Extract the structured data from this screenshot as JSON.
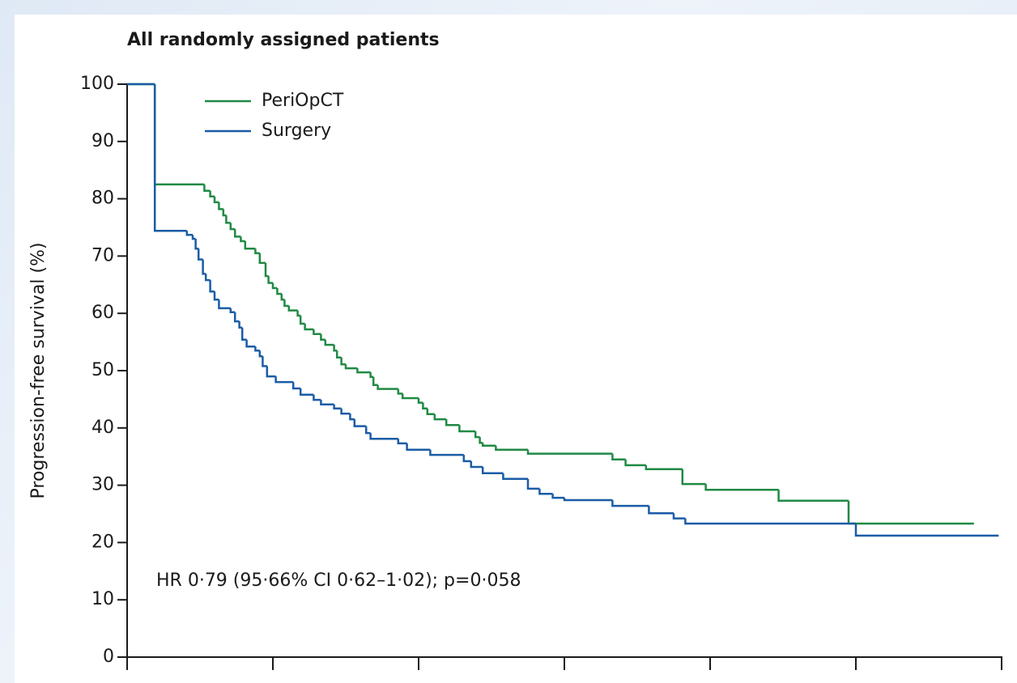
{
  "chart_data": {
    "type": "step",
    "title": "All randomly assigned patients",
    "y_label": "Progression-free survival (%)",
    "annotation": "HR 0·79 (95·66% CI 0·62–1·02); p=0·058",
    "xlim": [
      0,
      6
    ],
    "xticks": [
      0,
      1,
      2,
      3,
      4,
      5,
      6
    ],
    "ylim": [
      0,
      100
    ],
    "yticks": [
      0,
      10,
      20,
      30,
      40,
      50,
      60,
      70,
      80,
      90,
      100
    ],
    "legend": "upper left",
    "series": [
      {
        "name": "PeriOpCT",
        "color": "#1f8a44",
        "x": [
          0,
          0.19,
          0.53,
          0.57,
          0.6,
          0.63,
          0.66,
          0.68,
          0.71,
          0.74,
          0.78,
          0.81,
          0.88,
          0.91,
          0.95,
          0.97,
          1,
          1.03,
          1.06,
          1.08,
          1.11,
          1.17,
          1.19,
          1.22,
          1.28,
          1.33,
          1.36,
          1.42,
          1.44,
          1.47,
          1.5,
          1.58,
          1.67,
          1.69,
          1.72,
          1.86,
          1.89,
          2,
          2.03,
          2.06,
          2.11,
          2.19,
          2.28,
          2.39,
          2.42,
          2.44,
          2.53,
          2.75,
          3.33,
          3.42,
          3.56,
          3.81,
          3.97,
          4.47,
          4.95,
          5.81
        ],
        "values": [
          100,
          82.5,
          81.4,
          80.4,
          79.4,
          78.2,
          77.1,
          75.8,
          74.7,
          73.4,
          72.6,
          71.3,
          70.5,
          68.8,
          66.5,
          65.3,
          64.4,
          63.4,
          62.4,
          61.3,
          60.5,
          59.6,
          58.2,
          57.2,
          56.4,
          55.4,
          54.5,
          53.5,
          52.3,
          51.1,
          50.4,
          49.7,
          48.9,
          47.5,
          46.8,
          46,
          45.2,
          44.4,
          43.4,
          42.4,
          41.5,
          40.5,
          39.4,
          38.4,
          37.4,
          36.9,
          36.2,
          35.5,
          34.5,
          33.5,
          32.8,
          30.2,
          29.2,
          27.3,
          23.3,
          23.3
        ]
      },
      {
        "name": "Surgery",
        "color": "#1a5ca6",
        "x": [
          0,
          0.19,
          0.41,
          0.45,
          0.47,
          0.49,
          0.52,
          0.54,
          0.57,
          0.6,
          0.63,
          0.71,
          0.74,
          0.77,
          0.79,
          0.82,
          0.88,
          0.91,
          0.93,
          0.96,
          1.02,
          1.14,
          1.19,
          1.28,
          1.33,
          1.42,
          1.47,
          1.53,
          1.56,
          1.64,
          1.67,
          1.86,
          1.92,
          2.08,
          2.31,
          2.36,
          2.44,
          2.58,
          2.75,
          2.83,
          2.92,
          3,
          3.33,
          3.58,
          3.75,
          3.83,
          5,
          5.98
        ],
        "values": [
          100,
          74.4,
          73.7,
          73,
          71.3,
          69.4,
          66.9,
          65.8,
          63.8,
          62.4,
          60.9,
          60.2,
          58.6,
          57.5,
          55.4,
          54.2,
          53.5,
          52.5,
          50.8,
          49,
          48,
          46.9,
          45.8,
          44.9,
          44.1,
          43.4,
          42.5,
          41.5,
          40.3,
          39.1,
          38.1,
          37.3,
          36.2,
          35.3,
          34.2,
          33.2,
          32.1,
          31.1,
          29.4,
          28.5,
          27.8,
          27.4,
          26.4,
          25.1,
          24.2,
          23.3,
          21.2,
          21.2
        ]
      }
    ]
  }
}
